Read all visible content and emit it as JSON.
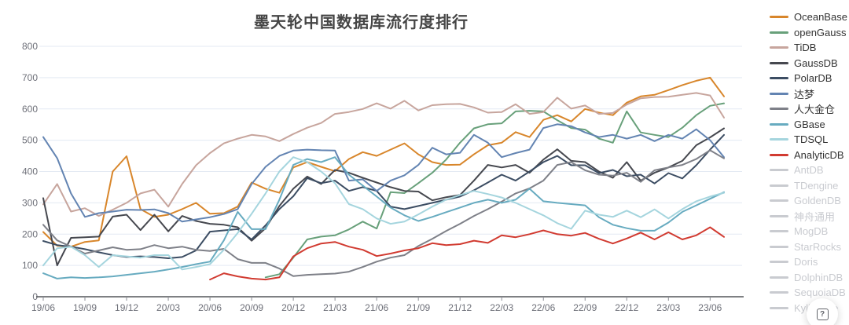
{
  "title": "墨天轮中国数据库流行度排行",
  "help_button": {
    "icon": "boxed-question-icon",
    "label": "?"
  },
  "chart_data": {
    "type": "line",
    "title": "墨天轮中国数据库流行度排行",
    "grid": true,
    "legend_position": "right",
    "y_axis": {
      "min": 0,
      "max": 800,
      "step": 100,
      "tick_labels": [
        "0",
        "100",
        "200",
        "300",
        "400",
        "500",
        "600",
        "700",
        "800"
      ]
    },
    "x_axis": {
      "tick_labels": [
        "19/06",
        "19/09",
        "19/12",
        "20/03",
        "20/06",
        "20/09",
        "20/12",
        "21/03",
        "21/06",
        "21/09",
        "21/12",
        "22/03",
        "22/06",
        "22/09",
        "22/12",
        "23/03",
        "23/06"
      ],
      "months_per_tick": 3,
      "monthly_point_count": 50,
      "note": "monthly points from 2019/06 to 2023/07"
    },
    "series": [
      {
        "name": "OceanBase",
        "color": "#d8862b",
        "active": true,
        "values": [
          207,
          163,
          160,
          175,
          180,
          400,
          449,
          280,
          255,
          262,
          280,
          300,
          265,
          267,
          288,
          365,
          345,
          332,
          413,
          430,
          415,
          401,
          440,
          462,
          450,
          470,
          490,
          455,
          430,
          421,
          422,
          455,
          484,
          492,
          526,
          510,
          565,
          580,
          560,
          600,
          588,
          580,
          620,
          640,
          645,
          660,
          676,
          690,
          700,
          640
        ]
      },
      {
        "name": "openGauss",
        "color": "#68a07a",
        "active": true,
        "values": [
          null,
          null,
          null,
          null,
          null,
          null,
          null,
          null,
          null,
          null,
          null,
          null,
          null,
          null,
          null,
          null,
          62,
          72,
          125,
          183,
          192,
          196,
          215,
          240,
          218,
          334,
          331,
          363,
          396,
          438,
          492,
          538,
          551,
          554,
          592,
          594,
          592,
          564,
          539,
          534,
          505,
          492,
          592,
          525,
          517,
          510,
          540,
          580,
          610,
          618
        ]
      },
      {
        "name": "TiDB",
        "color": "#c7a59d",
        "active": true,
        "values": [
          295,
          360,
          272,
          283,
          258,
          278,
          300,
          330,
          342,
          288,
          360,
          420,
          459,
          490,
          505,
          517,
          512,
          497,
          520,
          540,
          555,
          584,
          590,
          600,
          618,
          601,
          626,
          595,
          612,
          615,
          616,
          605,
          588,
          590,
          615,
          584,
          590,
          636,
          601,
          611,
          584,
          587,
          614,
          634,
          638,
          639,
          645,
          651,
          643,
          572
        ]
      },
      {
        "name": "GaussDB",
        "color": "#46484f",
        "active": true,
        "values": [
          315,
          100,
          188,
          190,
          192,
          256,
          262,
          213,
          262,
          209,
          258,
          242,
          233,
          230,
          222,
          179,
          219,
          290,
          345,
          384,
          360,
          405,
          396,
          380,
          365,
          350,
          338,
          336,
          308,
          318,
          325,
          371,
          421,
          413,
          421,
          396,
          438,
          471,
          434,
          430,
          400,
          380,
          430,
          371,
          396,
          413,
          434,
          484,
          509,
          538
        ]
      },
      {
        "name": "PolarDB",
        "color": "#3c4d63",
        "active": true,
        "values": [
          178,
          165,
          160,
          152,
          142,
          133,
          127,
          129,
          127,
          123,
          127,
          148,
          208,
          212,
          216,
          183,
          228,
          280,
          321,
          379,
          363,
          371,
          338,
          350,
          338,
          288,
          280,
          290,
          300,
          310,
          320,
          340,
          365,
          390,
          371,
          400,
          430,
          450,
          420,
          420,
          395,
          405,
          385,
          390,
          362,
          395,
          378,
          420,
          470,
          517
        ]
      },
      {
        "name": "达梦",
        "color": "#6384b2",
        "active": true,
        "values": [
          510,
          443,
          330,
          255,
          267,
          272,
          278,
          277,
          279,
          267,
          240,
          247,
          254,
          264,
          280,
          360,
          415,
          450,
          467,
          470,
          468,
          467,
          371,
          375,
          338,
          371,
          388,
          421,
          476,
          455,
          460,
          517,
          492,
          446,
          459,
          470,
          539,
          551,
          545,
          525,
          510,
          517,
          505,
          517,
          497,
          517,
          505,
          535,
          500,
          446
        ]
      },
      {
        "name": "人大金仓",
        "color": "#7e8088",
        "active": true,
        "values": [
          230,
          180,
          160,
          138,
          148,
          158,
          150,
          152,
          165,
          155,
          160,
          150,
          146,
          153,
          120,
          108,
          108,
          90,
          66,
          70,
          72,
          74,
          80,
          95,
          112,
          125,
          133,
          162,
          185,
          210,
          233,
          258,
          280,
          304,
          330,
          346,
          371,
          421,
          430,
          404,
          390,
          387,
          396,
          367,
          404,
          413,
          421,
          440,
          468,
          442
        ]
      },
      {
        "name": "GBase",
        "color": "#67abc0",
        "active": true,
        "values": [
          75,
          58,
          62,
          60,
          62,
          65,
          70,
          75,
          80,
          87,
          95,
          104,
          112,
          180,
          271,
          216,
          216,
          310,
          421,
          440,
          430,
          446,
          390,
          355,
          320,
          285,
          260,
          242,
          255,
          270,
          285,
          300,
          310,
          300,
          310,
          345,
          305,
          300,
          296,
          292,
          254,
          230,
          219,
          211,
          211,
          237,
          271,
          292,
          313,
          334
        ]
      },
      {
        "name": "TDSQL",
        "color": "#a5d5de",
        "active": true,
        "values": [
          100,
          155,
          160,
          133,
          95,
          133,
          129,
          125,
          133,
          133,
          87,
          95,
          104,
          150,
          204,
          265,
          330,
          400,
          446,
          430,
          400,
          363,
          296,
          280,
          250,
          233,
          240,
          263,
          288,
          310,
          325,
          338,
          328,
          317,
          300,
          280,
          260,
          235,
          217,
          275,
          262,
          255,
          275,
          254,
          279,
          250,
          280,
          305,
          320,
          332
        ]
      },
      {
        "name": "AnalyticDB",
        "color": "#d13b31",
        "active": true,
        "values": [
          null,
          null,
          null,
          null,
          null,
          null,
          null,
          null,
          null,
          null,
          null,
          null,
          55,
          75,
          65,
          58,
          55,
          62,
          129,
          155,
          170,
          175,
          160,
          150,
          130,
          138,
          148,
          155,
          171,
          165,
          168,
          179,
          172,
          196,
          190,
          200,
          212,
          200,
          195,
          204,
          185,
          170,
          186,
          205,
          183,
          206,
          183,
          196,
          222,
          191
        ]
      },
      {
        "name": "AntDB",
        "color": "#c9cbd0",
        "active": false,
        "values": []
      },
      {
        "name": "TDengine",
        "color": "#c9cbd0",
        "active": false,
        "values": []
      },
      {
        "name": "GoldenDB",
        "color": "#c9cbd0",
        "active": false,
        "values": []
      },
      {
        "name": "神舟通用",
        "color": "#c9cbd0",
        "active": false,
        "values": []
      },
      {
        "name": "MogDB",
        "color": "#c9cbd0",
        "active": false,
        "values": []
      },
      {
        "name": "StarRocks",
        "color": "#c9cbd0",
        "active": false,
        "values": []
      },
      {
        "name": "Doris",
        "color": "#c9cbd0",
        "active": false,
        "values": []
      },
      {
        "name": "DolphinDB",
        "color": "#c9cbd0",
        "active": false,
        "values": []
      },
      {
        "name": "SequoiaDB",
        "color": "#c9cbd0",
        "active": false,
        "values": []
      },
      {
        "name": "Kyligence",
        "color": "#c9cbd0",
        "active": false,
        "values": []
      }
    ],
    "style": {
      "grid_color": "#e3e9f3",
      "axis_line_color": "#54565a",
      "tick_color": "#8b8d94",
      "axis_label_color": "#6e7079",
      "background": "#ffffff"
    }
  }
}
